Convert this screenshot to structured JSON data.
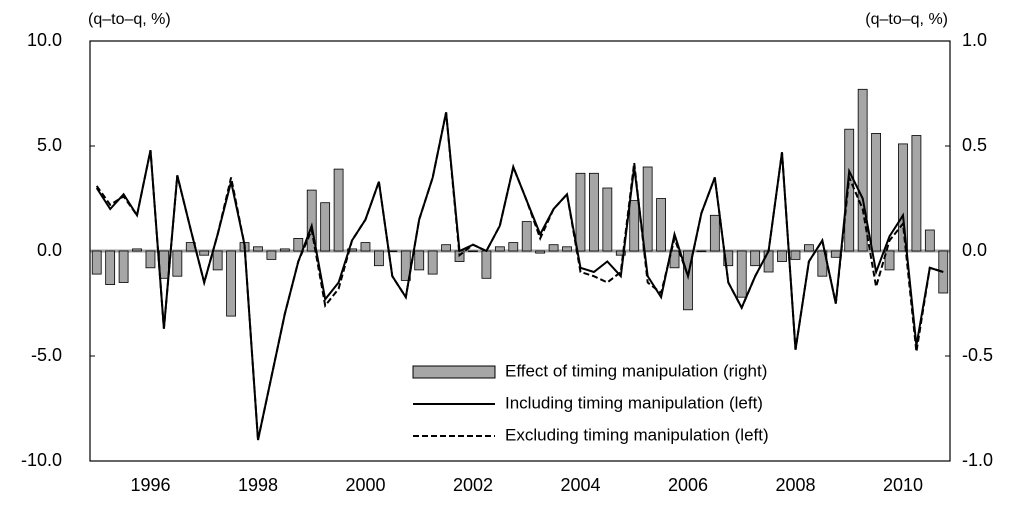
{
  "chart_data": {
    "type": "bar_line",
    "left_unit": "(q–to–q, %)",
    "right_unit": "(q–to–q, %)",
    "categories": [
      null,
      null,
      null,
      null,
      "1996",
      null,
      null,
      null,
      null,
      null,
      null,
      null,
      "1998",
      null,
      null,
      null,
      null,
      null,
      null,
      null,
      "2000",
      null,
      null,
      null,
      null,
      null,
      null,
      null,
      "2002",
      null,
      null,
      null,
      null,
      null,
      null,
      null,
      "2004",
      null,
      null,
      null,
      null,
      null,
      null,
      null,
      "2006",
      null,
      null,
      null,
      null,
      null,
      null,
      null,
      "2008",
      null,
      null,
      null,
      null,
      null,
      null,
      null,
      "2010",
      null,
      null,
      null
    ],
    "ylim": [
      -10,
      10
    ],
    "yticks": [
      {
        "value": 10,
        "label": "10.0"
      },
      {
        "value": 5,
        "label": "5.0"
      },
      {
        "value": 0,
        "label": "0.0"
      },
      {
        "value": -5,
        "label": "-5.0"
      },
      {
        "value": -10,
        "label": "-10.0"
      }
    ],
    "y2lim": [
      -1,
      1
    ],
    "y2ticks": [
      {
        "value": 1,
        "label": "1.0"
      },
      {
        "value": 0.5,
        "label": "0.5"
      },
      {
        "value": 0,
        "label": "0.0"
      },
      {
        "value": -0.5,
        "label": "-0.5"
      },
      {
        "value": -1,
        "label": "-1.0"
      }
    ],
    "series": [
      {
        "name": "Effect of timing manipulation (right)",
        "type": "bar",
        "axis": "y2",
        "color": "#a6a6a6",
        "values": [
          -0.11,
          -0.16,
          -0.15,
          0.01,
          -0.08,
          -0.13,
          -0.12,
          0.04,
          -0.02,
          -0.09,
          -0.31,
          0.04,
          0.02,
          -0.04,
          0.01,
          0.06,
          0.29,
          0.23,
          0.39,
          0.01,
          0.04,
          -0.07,
          0.0,
          -0.14,
          -0.09,
          -0.11,
          0.03,
          -0.05,
          0.0,
          -0.13,
          0.02,
          0.04,
          0.14,
          -0.01,
          0.03,
          0.02,
          0.37,
          0.37,
          0.3,
          -0.02,
          0.24,
          0.4,
          0.25,
          -0.08,
          -0.28,
          0.0,
          0.17,
          -0.07,
          -0.22,
          -0.07,
          -0.1,
          -0.05,
          -0.04,
          0.03,
          -0.12,
          -0.03,
          0.58,
          0.77,
          0.56,
          -0.09,
          0.51,
          0.55,
          0.1,
          -0.2
        ]
      },
      {
        "name": "Including timing manipulation (left)",
        "type": "line",
        "color": "#000000",
        "linestyle": "solid",
        "values": [
          3.0,
          2.0,
          2.7,
          1.7,
          4.8,
          -3.7,
          3.6,
          1.0,
          -1.5,
          0.8,
          3.3,
          0.3,
          -9.0,
          -6.0,
          -3.0,
          -0.5,
          1.2,
          -2.3,
          -1.5,
          0.5,
          1.5,
          3.3,
          -1.2,
          -2.2,
          1.5,
          3.5,
          6.6,
          0.0,
          0.3,
          0.0,
          1.2,
          4.0,
          2.4,
          0.8,
          2.0,
          2.7,
          -0.8,
          -1.0,
          -0.5,
          -1.2,
          4.0,
          -1.2,
          -2.2,
          0.8,
          -1.2,
          1.8,
          3.5,
          -1.5,
          -2.7,
          -1.2,
          0.0,
          4.7,
          -4.7,
          -0.5,
          0.5,
          -2.5,
          3.8,
          2.5,
          -1.0,
          0.7,
          1.7,
          -4.5,
          -0.8,
          -1.0
        ]
      },
      {
        "name": "Excluding timing manipulation (left)",
        "type": "line",
        "color": "#000000",
        "linestyle": "dashed",
        "values": [
          3.1,
          2.2,
          2.6,
          1.7,
          4.8,
          -3.7,
          3.6,
          1.0,
          -1.5,
          0.8,
          3.5,
          0.3,
          -9.0,
          -6.0,
          -3.0,
          -0.5,
          1.0,
          -2.6,
          -1.8,
          0.5,
          1.5,
          3.3,
          -1.2,
          -2.2,
          1.5,
          3.5,
          6.6,
          -0.2,
          0.3,
          0.0,
          1.2,
          4.0,
          2.4,
          0.6,
          2.0,
          2.7,
          -1.0,
          -1.2,
          -1.5,
          -1.0,
          4.2,
          -1.5,
          -2.0,
          0.6,
          -1.2,
          1.8,
          3.5,
          -1.5,
          -2.7,
          -1.2,
          0.0,
          4.7,
          -4.7,
          -0.5,
          0.5,
          -2.5,
          3.5,
          2.0,
          -1.7,
          0.5,
          1.3,
          -4.8,
          -0.8,
          -1.0
        ]
      }
    ]
  }
}
